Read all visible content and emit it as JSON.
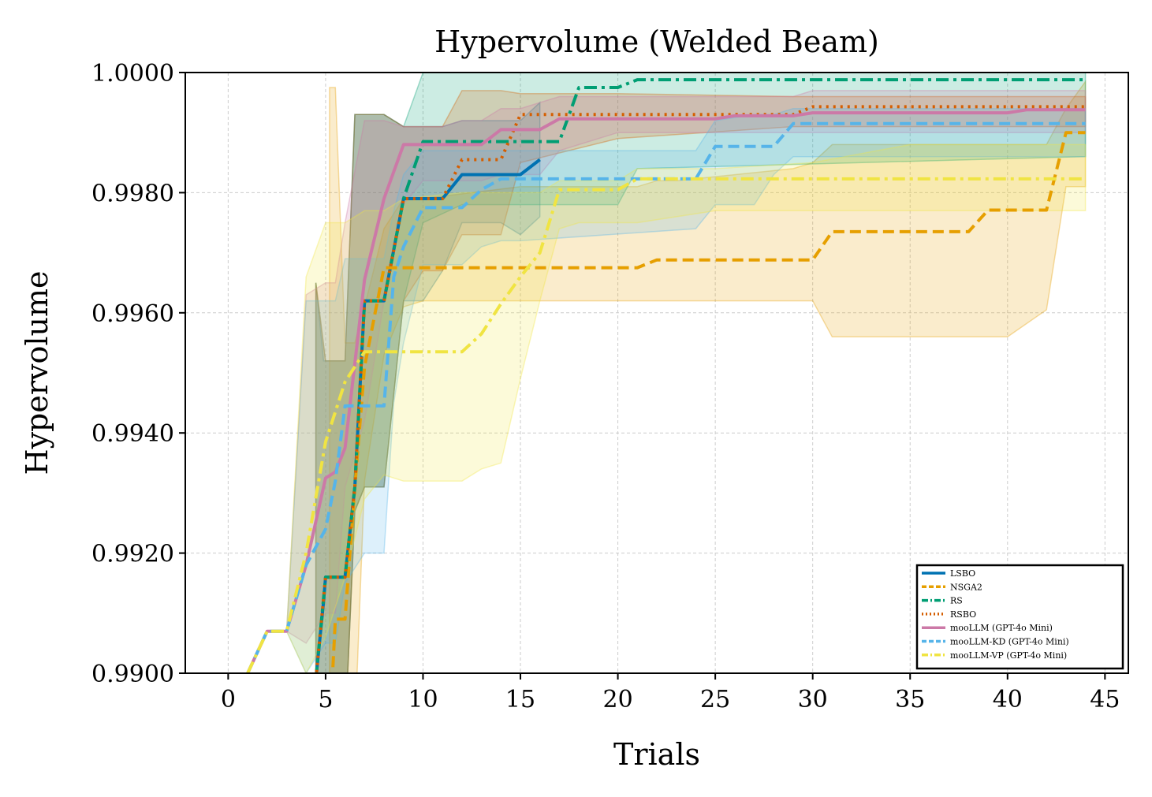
{
  "chart_data": {
    "type": "line",
    "title": "Hypervolume (Welded Beam)",
    "xlabel": "Trials",
    "ylabel": "Hypervolume",
    "xlim": [
      -2.2,
      46.2
    ],
    "ylim": [
      0.99,
      1.0
    ],
    "xticks": [
      0,
      5,
      10,
      15,
      20,
      25,
      30,
      35,
      40,
      45
    ],
    "xtick_labels": [
      "0",
      "5",
      "10",
      "15",
      "20",
      "25",
      "30",
      "35",
      "40",
      "45"
    ],
    "yticks": [
      0.99,
      0.992,
      0.994,
      0.996,
      0.998,
      1.0
    ],
    "ytick_labels": [
      "0.9900",
      "0.9920",
      "0.9940",
      "0.9960",
      "0.9980",
      "1.0000"
    ],
    "grid": true,
    "legend_position": "lower-right",
    "series": [
      {
        "name": "LSBO",
        "color": "#0072B2",
        "dash": "solid",
        "x": [
          4.5,
          4.9,
          5,
          6,
          6.5,
          7,
          8,
          9,
          10,
          11,
          12,
          13,
          14,
          15,
          16
        ],
        "y": [
          0.9899,
          0.9912,
          0.9916,
          0.9916,
          0.9931,
          0.9962,
          0.9962,
          0.9979,
          0.9979,
          0.9979,
          0.9983,
          0.9983,
          0.9983,
          0.9983,
          0.99855
        ],
        "band_upper": [
          0.9965,
          0.9952,
          0.9952,
          0.9952,
          0.9993,
          0.9993,
          0.9993,
          0.9991,
          0.9991,
          0.9991,
          0.9992,
          0.9992,
          0.9992,
          0.9992,
          0.9995
        ],
        "band_lower": [
          0.989,
          0.989,
          0.989,
          0.989,
          0.9927,
          0.9931,
          0.9931,
          0.9962,
          0.9962,
          0.9967,
          0.9975,
          0.9975,
          0.9975,
          0.9973,
          0.9976
        ]
      },
      {
        "name": "NSGA2",
        "color": "#E69F00",
        "dash": "dashed",
        "x": [
          5.2,
          5.5,
          6,
          6.5,
          7,
          8,
          9,
          10,
          15,
          21,
          22,
          23,
          29,
          30,
          31,
          38,
          39,
          40,
          42,
          43,
          44
        ],
        "y": [
          0.989,
          0.9909,
          0.9909,
          0.9931,
          0.9951,
          0.99675,
          0.99675,
          0.99675,
          0.99675,
          0.99675,
          0.99688,
          0.99688,
          0.99688,
          0.99688,
          0.99735,
          0.99735,
          0.99771,
          0.99771,
          0.99771,
          0.999,
          0.999
        ],
        "band_upper": [
          0.99975,
          0.99975,
          0.9955,
          0.9955,
          0.9961,
          0.9974,
          0.9979,
          0.9979,
          0.9981,
          0.9981,
          0.9982,
          0.9982,
          0.9984,
          0.9985,
          0.9988,
          0.9988,
          0.9988,
          0.9988,
          0.9988,
          0.9994,
          0.99985
        ],
        "band_lower": [
          0.989,
          0.989,
          0.989,
          0.989,
          0.9932,
          0.9953,
          0.9961,
          0.9962,
          0.9962,
          0.9962,
          0.9962,
          0.9962,
          0.9962,
          0.9962,
          0.9956,
          0.9956,
          0.9956,
          0.9956,
          0.99605,
          0.9981,
          0.9981
        ]
      },
      {
        "name": "RS",
        "color": "#009E73",
        "dash": "dashdot",
        "x": [
          4.5,
          5,
          6,
          6.5,
          7,
          8,
          9,
          10,
          12,
          13,
          14,
          15,
          17,
          18,
          20,
          21,
          44
        ],
        "y": [
          0.9899,
          0.9916,
          0.9916,
          0.9931,
          0.9962,
          0.9962,
          0.9979,
          0.99885,
          0.99885,
          0.99885,
          0.99885,
          0.99885,
          0.99885,
          0.99975,
          0.99975,
          0.99988,
          0.99988
        ],
        "band_upper": [
          0.9965,
          0.9952,
          0.9952,
          0.9993,
          0.9993,
          0.9993,
          0.9991,
          1.0,
          1.0,
          1.0,
          1.0,
          1.0,
          1.0,
          1.0,
          1.0,
          1.0,
          1.0
        ],
        "band_lower": [
          0.989,
          0.989,
          0.989,
          0.9927,
          0.9931,
          0.9931,
          0.9962,
          0.9975,
          0.9978,
          0.9978,
          0.9978,
          0.9978,
          0.9978,
          0.9978,
          0.9978,
          0.9984,
          0.9986
        ]
      },
      {
        "name": "RSBO",
        "color": "#D55E00",
        "dash": "dotted",
        "x": [
          4.5,
          5,
          6,
          6.5,
          7,
          8,
          9,
          10,
          11,
          12,
          13,
          14,
          15,
          20,
          29,
          30,
          44
        ],
        "y": [
          0.9899,
          0.9916,
          0.9916,
          0.9931,
          0.9962,
          0.9962,
          0.9979,
          0.9979,
          0.9979,
          0.99855,
          0.99855,
          0.99855,
          0.9993,
          0.9993,
          0.9993,
          0.99943,
          0.99943
        ],
        "band_upper": [
          0.9965,
          0.9952,
          0.9952,
          0.9993,
          0.9993,
          0.9993,
          0.9991,
          0.9991,
          0.9991,
          0.9997,
          0.9997,
          0.9997,
          0.99965,
          0.99965,
          0.9996,
          0.9996,
          0.9996
        ],
        "band_lower": [
          0.989,
          0.989,
          0.989,
          0.9927,
          0.9931,
          0.9931,
          0.9962,
          0.9967,
          0.9967,
          0.9973,
          0.9973,
          0.9973,
          0.9985,
          0.9989,
          0.9991,
          0.9991,
          0.9991
        ]
      },
      {
        "name": "mooLLM (GPT-4o Mini)",
        "color": "#CC79A7",
        "dash": "solid",
        "x": [
          1,
          2,
          3,
          4,
          5,
          5.5,
          6,
          7,
          8,
          9,
          10,
          11,
          12,
          13,
          14,
          15,
          16,
          17,
          20,
          25,
          26,
          29,
          30,
          35,
          40,
          41,
          44
        ],
        "y": [
          0.99,
          0.9907,
          0.9907,
          0.9918,
          0.99325,
          0.99335,
          0.99375,
          0.99655,
          0.9979,
          0.9988,
          0.9988,
          0.9988,
          0.9988,
          0.9988,
          0.99905,
          0.99905,
          0.99905,
          0.99923,
          0.99923,
          0.99923,
          0.99928,
          0.99928,
          0.99933,
          0.99933,
          0.99933,
          0.99938,
          0.99938
        ],
        "band_upper": [
          0.99,
          0.9907,
          0.9907,
          0.9963,
          0.9965,
          0.9965,
          0.9975,
          0.9992,
          0.9992,
          0.9991,
          0.9991,
          0.9991,
          0.9992,
          0.9992,
          0.9994,
          0.9994,
          0.9995,
          0.9996,
          0.9996,
          0.9996,
          0.9996,
          0.9996,
          0.9997,
          0.9997,
          0.9997,
          0.9997,
          0.9997
        ],
        "band_lower": [
          0.99,
          0.9907,
          0.9907,
          0.9905,
          0.991,
          0.991,
          0.9931,
          0.9942,
          0.9962,
          0.9978,
          0.9982,
          0.9982,
          0.9982,
          0.9982,
          0.9983,
          0.9983,
          0.9983,
          0.9987,
          0.999,
          0.999,
          0.999,
          0.999,
          0.999,
          0.999,
          0.999,
          0.999,
          0.999
        ]
      },
      {
        "name": "mooLLM-KD (GPT-4o Mini)",
        "color": "#56B4E9",
        "dash": "dashed",
        "x": [
          1,
          2,
          3,
          4,
          5,
          5.5,
          6,
          7,
          8,
          8.5,
          9,
          10,
          11,
          12,
          13,
          14,
          15,
          24,
          25,
          27,
          28,
          29,
          30,
          44
        ],
        "y": [
          0.99,
          0.9907,
          0.9907,
          0.9918,
          0.9924,
          0.9932,
          0.99445,
          0.99445,
          0.99445,
          0.9966,
          0.9971,
          0.99775,
          0.99775,
          0.99775,
          0.99805,
          0.99823,
          0.99823,
          0.99823,
          0.99877,
          0.99877,
          0.99877,
          0.99915,
          0.99915,
          0.99915
        ],
        "band_upper": [
          0.99,
          0.9907,
          0.9907,
          0.9962,
          0.9962,
          0.9962,
          0.9969,
          0.9969,
          0.9969,
          0.9977,
          0.9983,
          0.9987,
          0.9987,
          0.9987,
          0.9987,
          0.9987,
          0.9987,
          0.9987,
          0.9992,
          0.9993,
          0.9993,
          0.9994,
          0.9994,
          0.9994
        ],
        "band_lower": [
          0.99,
          0.9907,
          0.9907,
          0.99,
          0.9905,
          0.9905,
          0.9915,
          0.992,
          0.992,
          0.9945,
          0.9955,
          0.9968,
          0.9968,
          0.9968,
          0.9971,
          0.9972,
          0.9972,
          0.9974,
          0.9978,
          0.9978,
          0.9983,
          0.9986,
          0.9986,
          0.9986
        ]
      },
      {
        "name": "mooLLM-VP (GPT-4o Mini)",
        "color": "#F0E442",
        "dash": "dashdot",
        "x": [
          1,
          2,
          3,
          4,
          5,
          6,
          7,
          8,
          9,
          12,
          13,
          14,
          15,
          16,
          17,
          18,
          19,
          20,
          21,
          25,
          30,
          35,
          40,
          44
        ],
        "y": [
          0.99,
          0.9907,
          0.9907,
          0.992,
          0.99385,
          0.99485,
          0.99535,
          0.99535,
          0.99535,
          0.99535,
          0.99565,
          0.99615,
          0.9966,
          0.997,
          0.99805,
          0.99805,
          0.99805,
          0.99805,
          0.99823,
          0.99823,
          0.99823,
          0.99823,
          0.99823,
          0.99823
        ],
        "band_upper": [
          0.99,
          0.9907,
          0.9907,
          0.9966,
          0.9975,
          0.9975,
          0.9977,
          0.9977,
          0.9979,
          0.998,
          0.998,
          0.998,
          0.998,
          0.998,
          0.9982,
          0.9982,
          0.9982,
          0.9982,
          0.9984,
          0.9984,
          0.9985,
          0.9988,
          0.9988,
          0.9988
        ],
        "band_lower": [
          0.99,
          0.9907,
          0.9907,
          0.99,
          0.9906,
          0.9916,
          0.9929,
          0.9933,
          0.9932,
          0.9932,
          0.9934,
          0.9935,
          0.9949,
          0.9962,
          0.9974,
          0.9975,
          0.9975,
          0.9975,
          0.9975,
          0.9977,
          0.9977,
          0.9977,
          0.9977,
          0.9977
        ]
      }
    ]
  }
}
